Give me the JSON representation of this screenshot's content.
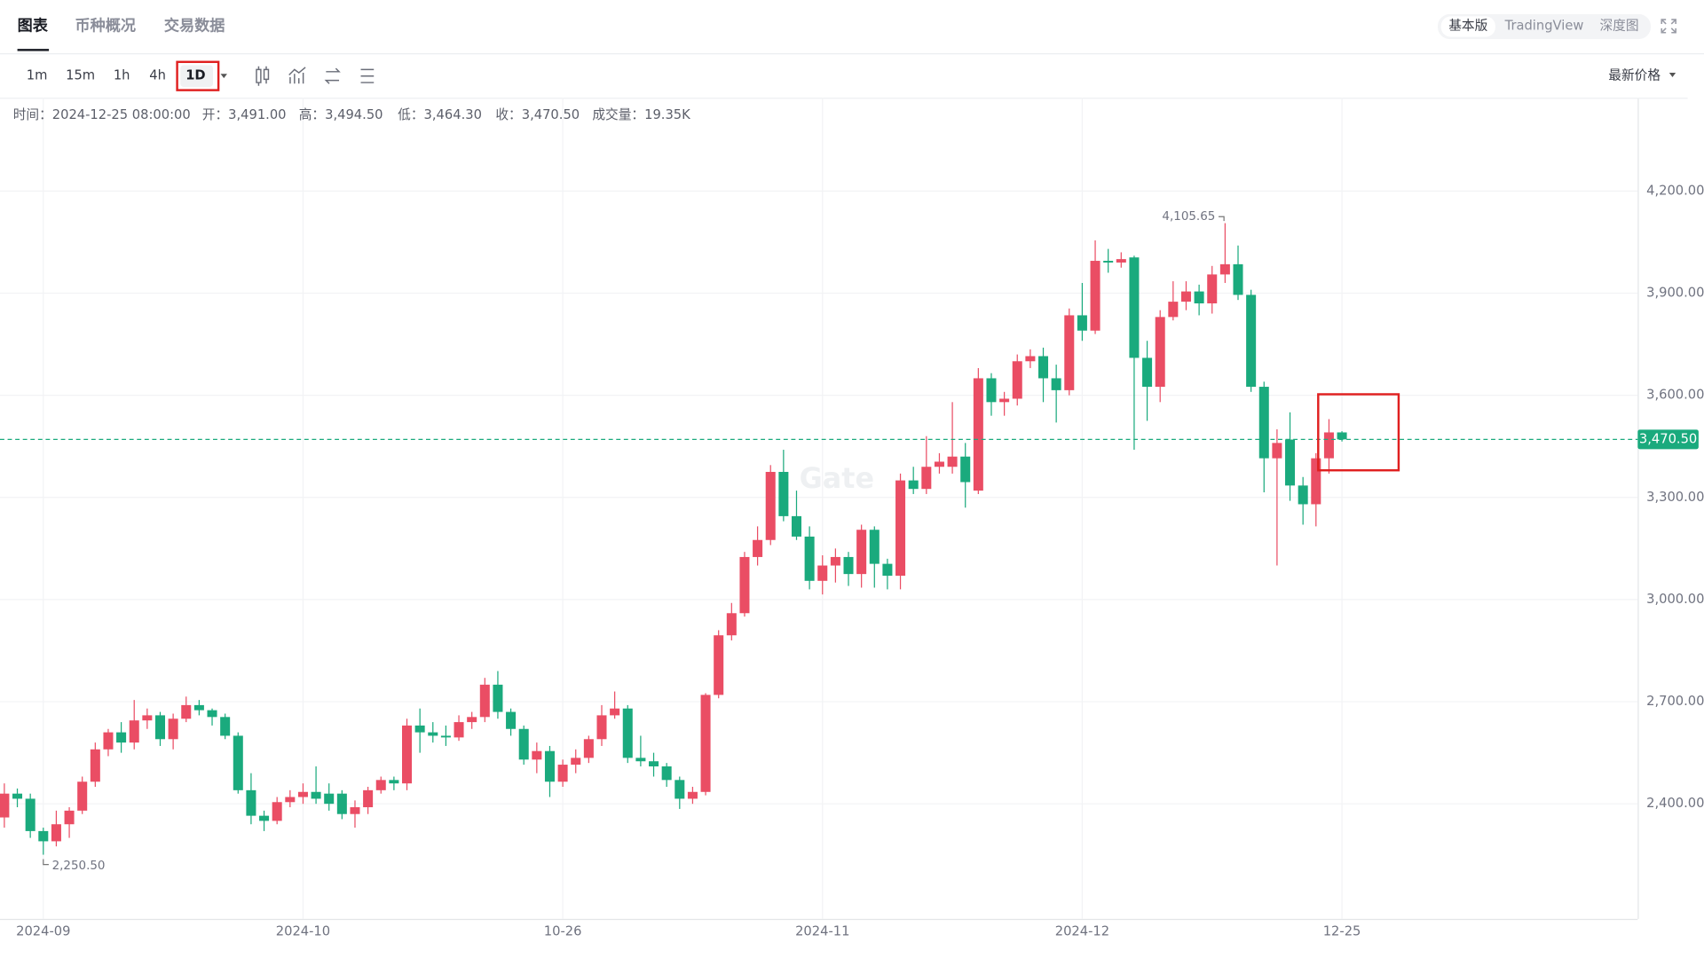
{
  "tabs": [
    "图表",
    "币种概况",
    "交易数据"
  ],
  "view_modes": [
    "基本版",
    "TradingView",
    "深度图"
  ],
  "intervals": [
    "1m",
    "15m",
    "1h",
    "4h",
    "1D"
  ],
  "price_selector": "最新价格",
  "ohlc_info": [
    "时间：2024-12-25 08:00:00",
    "开：3,491.00",
    "高：3,494.50",
    "低：3,464.30",
    "收：3,470.50",
    "成交量：19.35K"
  ],
  "watermark": "Gate",
  "chart_data": {
    "type": "candlestick",
    "categories": [
      null,
      null,
      null,
      "2024-09",
      null,
      null,
      null,
      null,
      null,
      null,
      null,
      null,
      null,
      null,
      null,
      null,
      null,
      null,
      null,
      null,
      null,
      null,
      null,
      "2024-10",
      null,
      null,
      null,
      null,
      null,
      null,
      null,
      null,
      null,
      null,
      null,
      null,
      null,
      null,
      null,
      null,
      null,
      null,
      null,
      "10-26",
      null,
      null,
      null,
      null,
      null,
      null,
      null,
      null,
      null,
      null,
      null,
      null,
      null,
      null,
      null,
      null,
      null,
      null,
      null,
      "2024-11",
      null,
      null,
      null,
      null,
      null,
      null,
      null,
      null,
      null,
      null,
      null,
      null,
      null,
      null,
      null,
      null,
      null,
      null,
      null,
      "2024-12",
      null,
      null,
      null,
      null,
      null,
      null,
      null,
      null,
      null,
      null,
      null,
      null,
      null,
      null,
      null,
      null,
      null,
      null,
      null,
      "12-25"
    ],
    "open": [
      2360,
      2430,
      2415,
      2320,
      2290,
      2340,
      2380,
      2465,
      2560,
      2610,
      2580,
      2645,
      2660,
      2590,
      2650,
      2690,
      2675,
      2655,
      2600,
      2440,
      2365,
      2350,
      2405,
      2420,
      2435,
      2430,
      2430,
      2370,
      2390,
      2440,
      2470,
      2460,
      2630,
      2610,
      2600,
      2595,
      2640,
      2655,
      2750,
      2670,
      2620,
      2530,
      2555,
      2465,
      2515,
      2535,
      2590,
      2660,
      2680,
      2535,
      2525,
      2510,
      2470,
      2415,
      2435,
      2720,
      2895,
      2960,
      3125,
      3175,
      3375,
      3245,
      3185,
      3055,
      3100,
      3125,
      3075,
      3205,
      3105,
      3070,
      3350,
      3325,
      3390,
      3390,
      3420,
      3320,
      3650,
      3580,
      3590,
      3700,
      3715,
      3650,
      3615,
      3835,
      3790,
      3995,
      3990,
      4005,
      3710,
      3625,
      3830,
      3875,
      3905,
      3870,
      3955,
      3985,
      3895,
      3625,
      3415,
      3470,
      3335,
      3280,
      3415,
      3491
    ],
    "high": [
      2460,
      2445,
      2430,
      2330,
      2380,
      2390,
      2480,
      2580,
      2620,
      2640,
      2705,
      2680,
      2670,
      2665,
      2715,
      2705,
      2680,
      2665,
      2610,
      2490,
      2380,
      2420,
      2440,
      2460,
      2510,
      2460,
      2440,
      2410,
      2450,
      2480,
      2480,
      2650,
      2680,
      2640,
      2630,
      2660,
      2670,
      2770,
      2790,
      2680,
      2630,
      2580,
      2570,
      2530,
      2560,
      2600,
      2690,
      2730,
      2690,
      2600,
      2550,
      2520,
      2480,
      2450,
      2725,
      2910,
      2990,
      3140,
      3215,
      3395,
      3440,
      3320,
      3215,
      3130,
      3150,
      3140,
      3220,
      3215,
      3120,
      3370,
      3390,
      3480,
      3430,
      3580,
      3460,
      3680,
      3665,
      3610,
      3720,
      3735,
      3740,
      3690,
      3855,
      3930,
      4055,
      4030,
      4020,
      4010,
      3760,
      3850,
      3935,
      3935,
      3925,
      3980,
      4105.65,
      4040,
      3910,
      3640,
      3500,
      3550,
      3360,
      3430,
      3530,
      3494.5
    ],
    "low": [
      2330,
      2390,
      2300,
      2250.5,
      2275,
      2300,
      2370,
      2450,
      2540,
      2550,
      2560,
      2620,
      2570,
      2560,
      2640,
      2660,
      2630,
      2590,
      2430,
      2340,
      2320,
      2340,
      2390,
      2400,
      2400,
      2380,
      2355,
      2330,
      2370,
      2430,
      2440,
      2440,
      2550,
      2580,
      2570,
      2585,
      2620,
      2640,
      2650,
      2600,
      2515,
      2490,
      2420,
      2450,
      2490,
      2520,
      2570,
      2650,
      2520,
      2510,
      2480,
      2450,
      2385,
      2400,
      2425,
      2710,
      2880,
      2950,
      3100,
      3160,
      3230,
      3175,
      3030,
      3015,
      3050,
      3040,
      3035,
      3035,
      3030,
      3030,
      3310,
      3310,
      3370,
      3370,
      3270,
      3310,
      3540,
      3540,
      3570,
      3680,
      3580,
      3520,
      3600,
      3760,
      3780,
      3960,
      3975,
      3440,
      3525,
      3580,
      3820,
      3850,
      3835,
      3840,
      3930,
      3880,
      3610,
      3315,
      3100,
      3290,
      3220,
      3215,
      3370,
      3464.3
    ],
    "close": [
      2430,
      2415,
      2320,
      2290,
      2340,
      2380,
      2465,
      2560,
      2610,
      2580,
      2645,
      2660,
      2590,
      2650,
      2690,
      2675,
      2655,
      2600,
      2440,
      2365,
      2350,
      2405,
      2420,
      2435,
      2415,
      2400,
      2370,
      2390,
      2440,
      2470,
      2460,
      2630,
      2610,
      2600,
      2595,
      2640,
      2655,
      2750,
      2670,
      2620,
      2530,
      2555,
      2465,
      2515,
      2535,
      2590,
      2660,
      2680,
      2535,
      2525,
      2510,
      2470,
      2415,
      2435,
      2720,
      2895,
      2960,
      3125,
      3175,
      3375,
      3245,
      3185,
      3055,
      3100,
      3125,
      3075,
      3205,
      3105,
      3070,
      3350,
      3325,
      3390,
      3405,
      3420,
      3345,
      3650,
      3580,
      3590,
      3700,
      3715,
      3650,
      3615,
      3835,
      3790,
      3995,
      3990,
      4000,
      3710,
      3625,
      3830,
      3875,
      3905,
      3870,
      3955,
      3985,
      3895,
      3625,
      3415,
      3460,
      3335,
      3280,
      3415,
      3491,
      3470.5
    ],
    "up_color": "#ea4d64",
    "down_color": "#1aaa7d",
    "ylim": [
      2062,
      4474
    ],
    "yticks": [
      {
        "value": 2400,
        "label": "2,400.00"
      },
      {
        "value": 2700,
        "label": "2,700.00"
      },
      {
        "value": 3000,
        "label": "3,000.00"
      },
      {
        "value": 3300,
        "label": "3,300.00"
      },
      {
        "value": 3600,
        "label": "3,600.00"
      },
      {
        "value": 3900,
        "label": "3,900.00"
      },
      {
        "value": 4200,
        "label": "4,200.00"
      }
    ],
    "grid": true,
    "last_price": {
      "value": 3470.5,
      "label": "3,470.50"
    },
    "max_annotation": {
      "value": 4105.65,
      "label": "4,105.65"
    },
    "min_annotation": {
      "value": 2250.5,
      "label": "2,250.50"
    }
  }
}
